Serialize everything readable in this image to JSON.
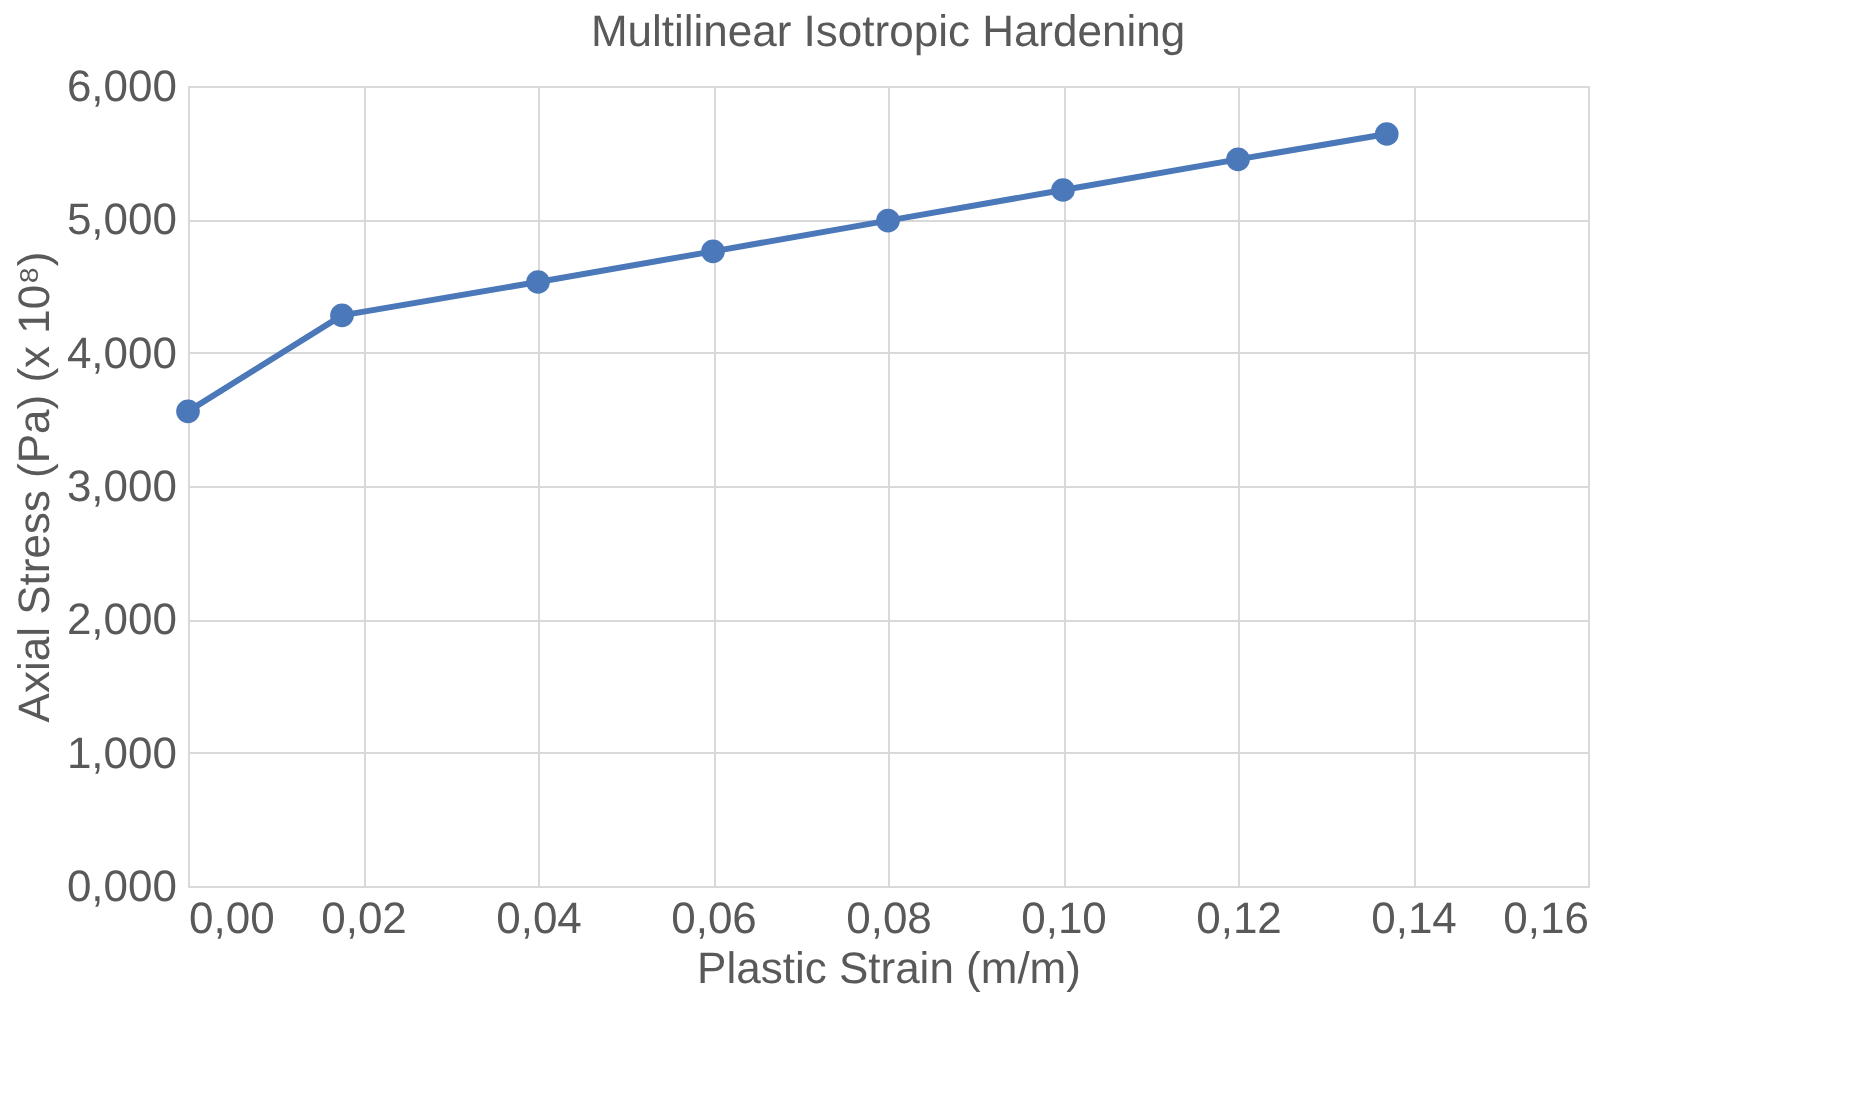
{
  "chart_data": {
    "type": "line",
    "title": "Multilinear Isotropic Hardening",
    "xlabel": "Plastic Strain (m/m)",
    "ylabel": "Axial Stress (Pa) (x 10⁸)",
    "x": [
      0,
      0.0176,
      0.04,
      0.06,
      0.08,
      0.1,
      0.12,
      0.137
    ],
    "series": [
      {
        "color": "#4a78b8",
        "values": [
          3.56,
          4.28,
          4.53,
          4.76,
          4.99,
          5.22,
          5.45,
          5.64
        ]
      }
    ],
    "xlim": [
      0,
      0.16
    ],
    "xticks": [
      {
        "value": 0,
        "label": "0,00"
      },
      {
        "value": 0.02,
        "label": "0,02"
      },
      {
        "value": 0.04,
        "label": "0,04"
      },
      {
        "value": 0.06,
        "label": "0,06"
      },
      {
        "value": 0.08,
        "label": "0,08"
      },
      {
        "value": 0.1,
        "label": "0,10"
      },
      {
        "value": 0.12,
        "label": "0,12"
      },
      {
        "value": 0.14,
        "label": "0,14"
      },
      {
        "value": 0.16,
        "label": "0,16"
      }
    ],
    "ylim": [
      0,
      6
    ],
    "yticks": [
      {
        "value": 0,
        "label": "0,000"
      },
      {
        "value": 1,
        "label": "1,000"
      },
      {
        "value": 2,
        "label": "2,000"
      },
      {
        "value": 3,
        "label": "3,000"
      },
      {
        "value": 4,
        "label": "4,000"
      },
      {
        "value": 5,
        "label": "5,000"
      },
      {
        "value": 6,
        "label": "6,000"
      }
    ],
    "grid": true,
    "marker": "circle",
    "line_style": "solid"
  }
}
